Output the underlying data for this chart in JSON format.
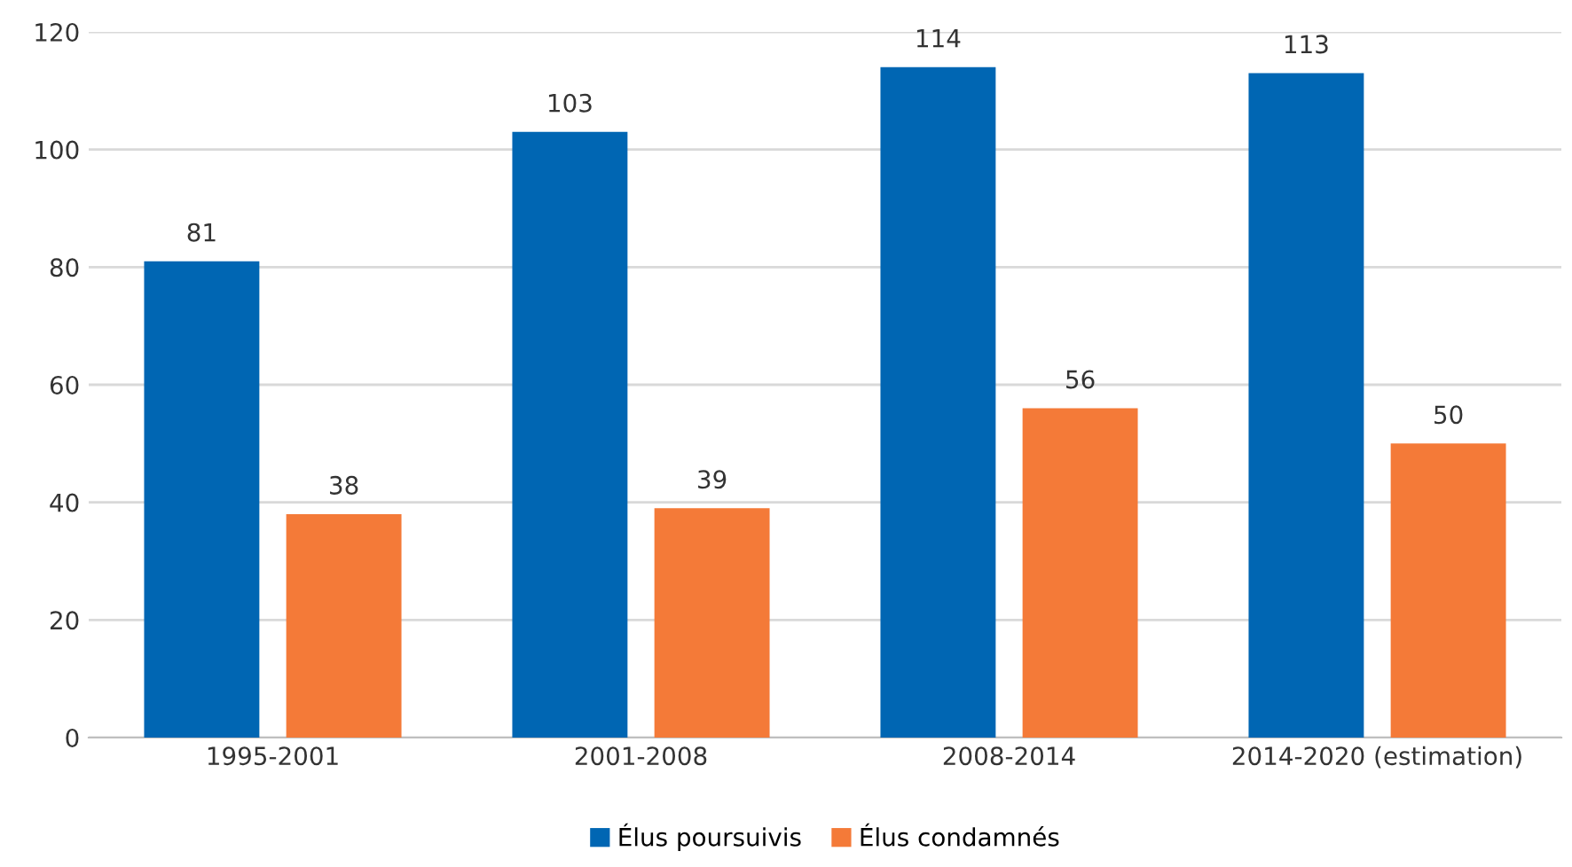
{
  "chart_data": {
    "type": "bar",
    "categories": [
      "1995-2001",
      "2001-2008",
      "2008-2014",
      "2014-2020 (estimation)"
    ],
    "series": [
      {
        "name": "Élus poursuivis",
        "color": "#0066b3",
        "values": [
          81,
          103,
          114,
          113
        ]
      },
      {
        "name": "Élus condamnés",
        "color": "#f47a38",
        "values": [
          38,
          39,
          56,
          50
        ]
      }
    ],
    "ylim": [
      0,
      120
    ],
    "yticks": [
      0,
      20,
      40,
      60,
      80,
      100,
      120
    ],
    "grid": "y",
    "legend": "bottom",
    "data_labels": true
  }
}
